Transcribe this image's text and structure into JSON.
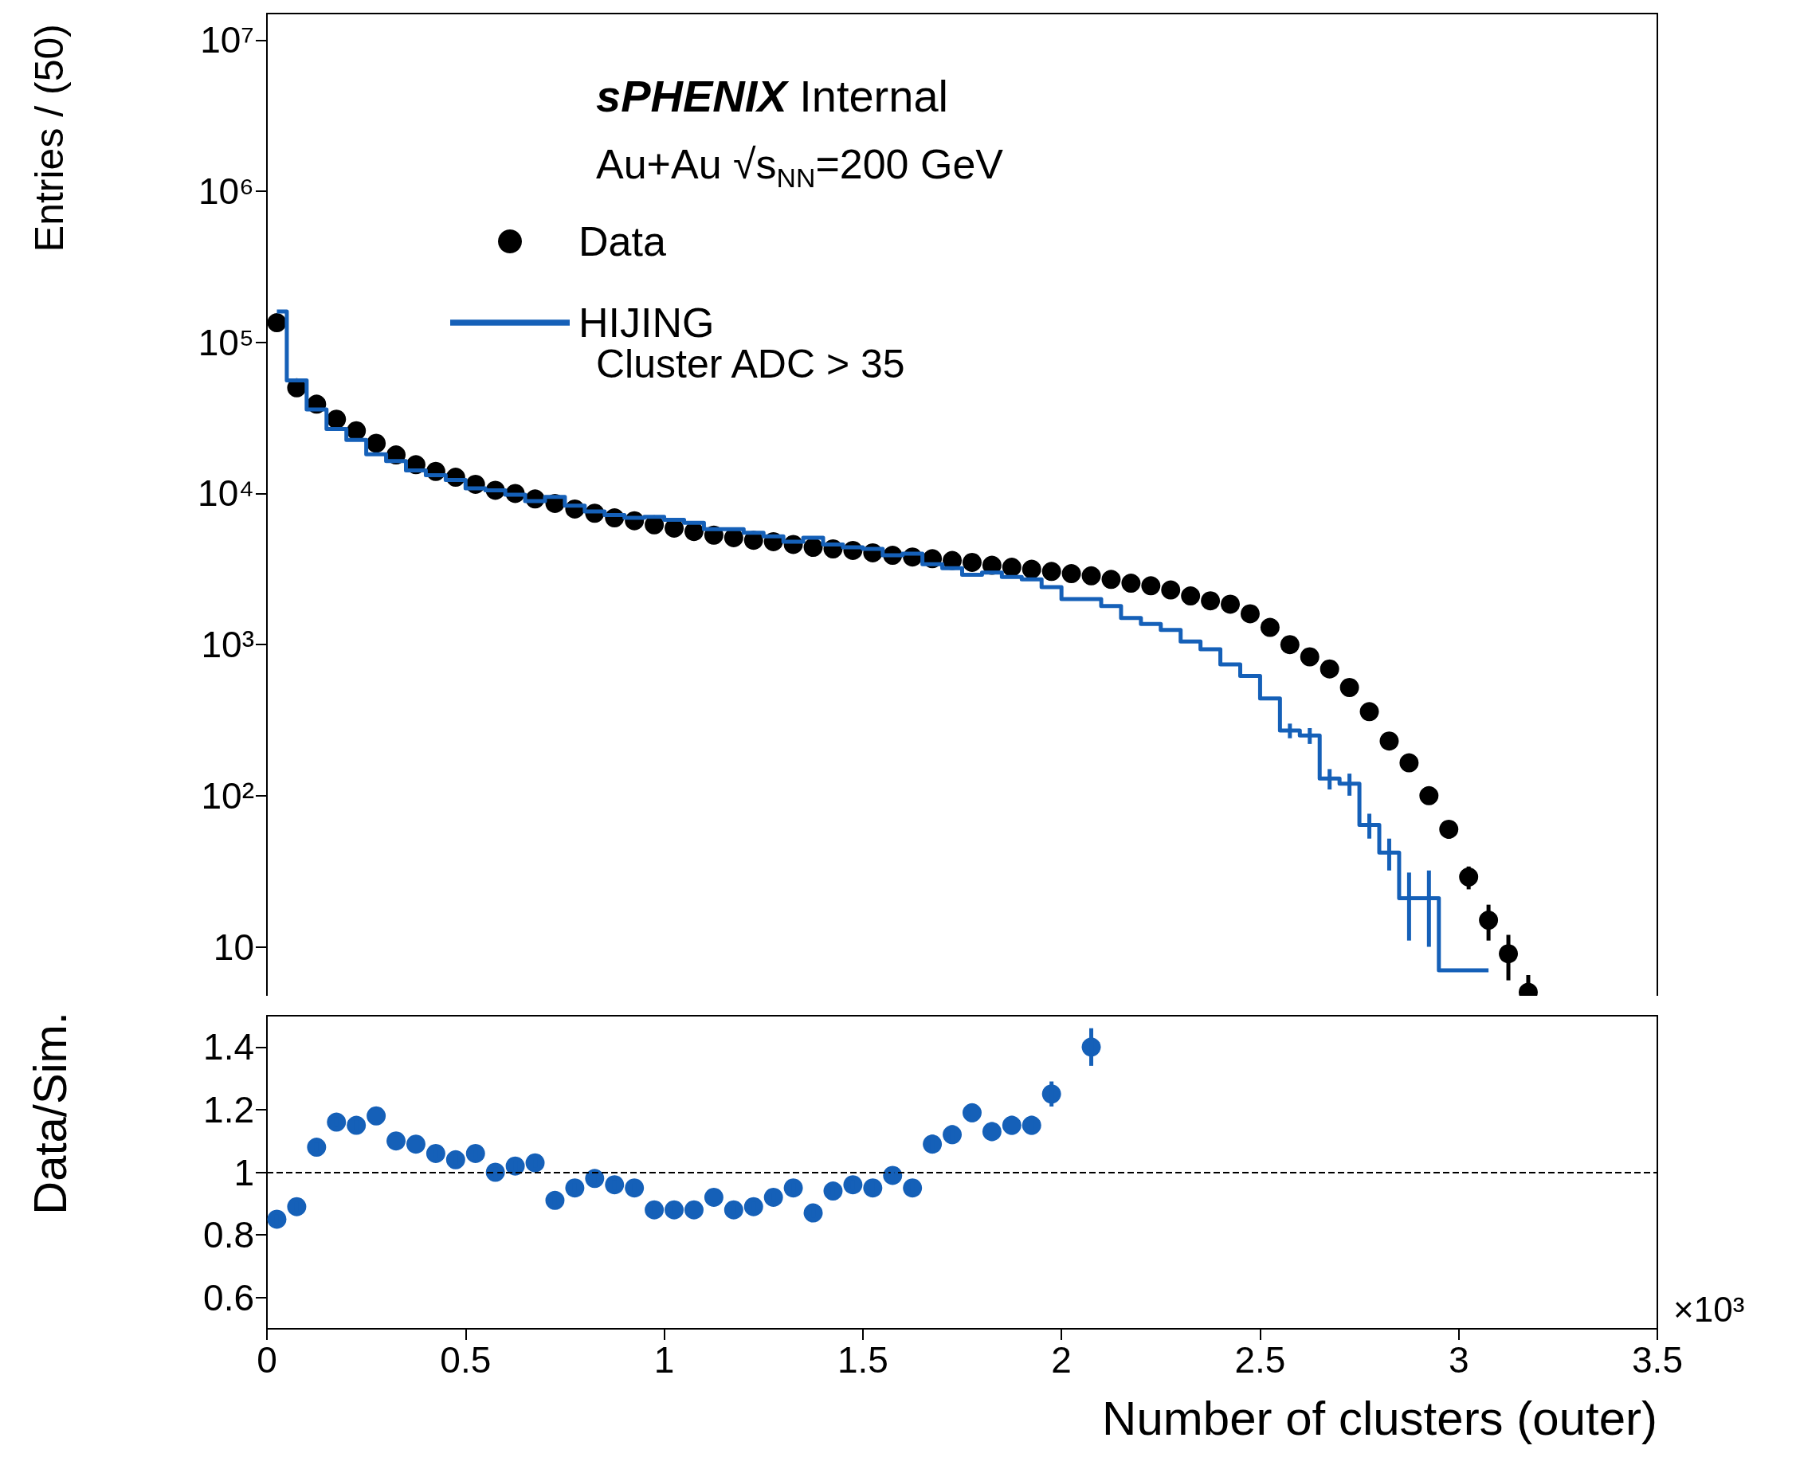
{
  "chart_data": [
    {
      "type": "scatter",
      "ylabel": "Entries / (50)",
      "annotations": [
        "sPHENIX Internal",
        "Au+Au √s$_{NN}$=200 GeV",
        "Cluster ADC > 35"
      ],
      "log": "y",
      "xlim": [
        0,
        3.5
      ],
      "xticks": [
        0,
        0.5,
        1,
        1.5,
        2,
        2.5,
        3,
        3.5
      ],
      "ylim": [
        3.5,
        15000000
      ],
      "yticks": [
        10,
        {
          "value": 100,
          "label": "10²"
        },
        {
          "value": 1000,
          "label": "10³"
        },
        {
          "value": 10000,
          "label": "10⁴"
        },
        {
          "value": 100000,
          "label": "10⁵"
        },
        {
          "value": 1000000,
          "label": "10⁶"
        },
        {
          "value": 10000000,
          "label": "10⁷"
        }
      ],
      "tick_labels": "y",
      "legend": "top left",
      "grid": false,
      "series": [
        {
          "name": "Data",
          "marker": "circle",
          "color": "#000000",
          "x": [
            0.025,
            0.075,
            0.125,
            0.175,
            0.225,
            0.275,
            0.325,
            0.375,
            0.425,
            0.475,
            0.525,
            0.575,
            0.625,
            0.675,
            0.725,
            0.775,
            0.825,
            0.875,
            0.925,
            0.975,
            1.025,
            1.075,
            1.125,
            1.175,
            1.225,
            1.275,
            1.325,
            1.375,
            1.425,
            1.475,
            1.525,
            1.575,
            1.625,
            1.675,
            1.725,
            1.775,
            1.825,
            1.875,
            1.925,
            1.975,
            2.025,
            2.075,
            2.125,
            2.175,
            2.225,
            2.275,
            2.325,
            2.375,
            2.425,
            2.475,
            2.525,
            2.575,
            2.625,
            2.675,
            2.725,
            2.775,
            2.825,
            2.875,
            2.925,
            2.975,
            3.025,
            3.075,
            3.125,
            3.175
          ],
          "values": [
            135000,
            50000,
            39000,
            31000,
            26000,
            21500,
            18000,
            15500,
            14000,
            12800,
            11500,
            10500,
            10000,
            9200,
            8600,
            7900,
            7400,
            6900,
            6600,
            6200,
            5900,
            5600,
            5300,
            5100,
            4900,
            4800,
            4600,
            4400,
            4300,
            4200,
            4050,
            3900,
            3800,
            3700,
            3600,
            3500,
            3350,
            3250,
            3150,
            3050,
            2950,
            2850,
            2700,
            2550,
            2450,
            2300,
            2100,
            1950,
            1850,
            1600,
            1300,
            1000,
            830,
            690,
            520,
            360,
            230,
            165,
            100,
            60,
            29,
            15,
            9,
            5
          ],
          "errors": [
            null,
            null,
            null,
            null,
            null,
            null,
            null,
            null,
            null,
            null,
            null,
            null,
            null,
            null,
            null,
            null,
            null,
            null,
            null,
            null,
            null,
            null,
            null,
            null,
            null,
            null,
            null,
            null,
            null,
            null,
            null,
            null,
            null,
            null,
            null,
            null,
            null,
            null,
            null,
            null,
            null,
            null,
            null,
            null,
            null,
            null,
            null,
            null,
            null,
            null,
            null,
            null,
            null,
            null,
            null,
            null,
            null,
            null,
            10,
            8,
            5,
            4,
            3,
            1.5
          ]
        },
        {
          "name": "HIJING",
          "type": "step",
          "color": "#1560b8",
          "x": [
            0.025,
            0.075,
            0.125,
            0.175,
            0.225,
            0.275,
            0.325,
            0.375,
            0.425,
            0.475,
            0.525,
            0.575,
            0.625,
            0.675,
            0.725,
            0.775,
            0.825,
            0.875,
            0.925,
            0.975,
            1.025,
            1.075,
            1.125,
            1.175,
            1.225,
            1.275,
            1.325,
            1.375,
            1.425,
            1.475,
            1.525,
            1.575,
            1.625,
            1.675,
            1.725,
            1.775,
            1.825,
            1.875,
            1.925,
            1.975,
            2.025,
            2.075,
            2.125,
            2.175,
            2.225,
            2.275,
            2.325,
            2.375,
            2.425,
            2.475,
            2.525,
            2.575,
            2.625,
            2.675,
            2.725,
            2.775,
            2.825,
            2.875,
            2.925,
            2.975,
            3.025,
            3.075
          ],
          "values": [
            160000,
            56000,
            36000,
            26700,
            22600,
            18200,
            16400,
            14200,
            13200,
            12300,
            10800,
            10500,
            9800,
            8900,
            9500,
            8300,
            7600,
            7200,
            6900,
            7000,
            6700,
            6400,
            5800,
            5800,
            5500,
            5200,
            4800,
            5100,
            4600,
            4400,
            4300,
            3900,
            4000,
            3400,
            3200,
            2900,
            3000,
            2800,
            2700,
            2400,
            2000,
            2000,
            1800,
            1500,
            1370,
            1250,
            1050,
            930,
            740,
            620,
            440,
            270,
            250,
            130,
            120,
            64,
            42,
            21,
            21,
            7,
            7,
            7
          ],
          "errors": [
            null,
            null,
            null,
            null,
            null,
            null,
            null,
            null,
            null,
            null,
            null,
            null,
            null,
            null,
            null,
            null,
            null,
            null,
            null,
            null,
            null,
            null,
            null,
            null,
            null,
            null,
            null,
            null,
            null,
            null,
            null,
            null,
            null,
            null,
            null,
            null,
            null,
            null,
            null,
            null,
            null,
            null,
            null,
            null,
            null,
            null,
            null,
            null,
            null,
            null,
            null,
            30,
            30,
            20,
            20,
            12,
            10,
            10,
            11,
            null,
            null,
            null
          ]
        }
      ]
    },
    {
      "type": "scatter",
      "xlabel": "Number of clusters (outer)",
      "ylabel": "Data/Sim.",
      "annotations": [
        "×10³"
      ],
      "xlim": [
        0,
        3.5
      ],
      "xticks": [
        0,
        0.5,
        1,
        1.5,
        2,
        2.5,
        3,
        3.5
      ],
      "ylim": [
        0.5,
        1.5
      ],
      "yticks": [
        0.6,
        0.8,
        1,
        1.2,
        1.4
      ],
      "marker": "circle",
      "grid": false,
      "ref_lines": [
        {
          "axis": "y",
          "value": 1,
          "color": "#000000",
          "line_style": "dashed"
        }
      ],
      "series": [
        {
          "color": "#1560b8",
          "x": [
            0.025,
            0.075,
            0.125,
            0.175,
            0.225,
            0.275,
            0.325,
            0.375,
            0.425,
            0.475,
            0.525,
            0.575,
            0.625,
            0.675,
            0.725,
            0.775,
            0.825,
            0.875,
            0.925,
            0.975,
            1.025,
            1.075,
            1.125,
            1.175,
            1.225,
            1.275,
            1.325,
            1.375,
            1.425,
            1.475,
            1.525,
            1.575,
            1.625,
            1.675,
            1.725,
            1.775,
            1.825,
            1.875,
            1.925,
            1.975,
            2.025,
            2.075
          ],
          "values": [
            0.85,
            0.89,
            1.08,
            1.16,
            1.15,
            1.18,
            1.1,
            1.09,
            1.06,
            1.04,
            1.06,
            1.0,
            1.02,
            1.03,
            0.91,
            0.95,
            0.98,
            0.96,
            0.95,
            0.88,
            0.88,
            0.88,
            0.92,
            0.88,
            0.89,
            0.92,
            0.95,
            0.87,
            0.94,
            0.96,
            0.95,
            0.99,
            0.95,
            1.09,
            1.12,
            1.19,
            1.13,
            1.15,
            1.15,
            1.25,
            null,
            1.4
          ],
          "errors": [
            0.015,
            0.015,
            0.015,
            0.015,
            0.015,
            0.015,
            0.015,
            0.015,
            0.015,
            0.015,
            0.015,
            0.015,
            0.015,
            0.015,
            0.015,
            0.015,
            0.015,
            0.015,
            0.015,
            0.015,
            0.015,
            0.015,
            0.015,
            0.015,
            0.015,
            0.015,
            0.015,
            0.015,
            0.015,
            0.015,
            0.02,
            0.02,
            0.02,
            0.03,
            0.03,
            0.03,
            0.03,
            0.03,
            0.03,
            0.04,
            null,
            0.06
          ]
        }
      ]
    }
  ]
}
